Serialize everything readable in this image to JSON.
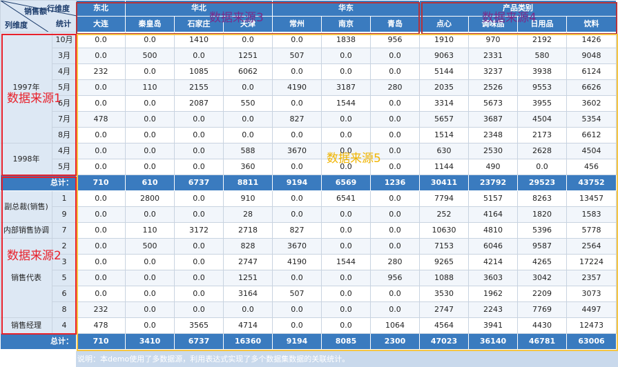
{
  "corner": {
    "row_dim": "行维度",
    "sales": "销售额",
    "stats": "统计",
    "col_dim": "列维度"
  },
  "header": {
    "groups": [
      "东北",
      "华北",
      "华东",
      "产品类别"
    ],
    "columns": [
      "大连",
      "秦皇岛",
      "石家庄",
      "天津",
      "常州",
      "南京",
      "青岛",
      "点心",
      "调味品",
      "日用品",
      "饮料"
    ]
  },
  "section1": {
    "year_groups": [
      "1997年",
      "1998年"
    ],
    "months": [
      "10月",
      "3月",
      "4月",
      "5月",
      "6月",
      "7月",
      "8月",
      "4月",
      "5月"
    ],
    "rows": [
      [
        "0.0",
        "0.0",
        "1410",
        "0.0",
        "0.0",
        "1838",
        "956",
        "1910",
        "970",
        "2192",
        "1426"
      ],
      [
        "0.0",
        "500",
        "0.0",
        "1251",
        "507",
        "0.0",
        "0.0",
        "9063",
        "2331",
        "580",
        "9048"
      ],
      [
        "232",
        "0.0",
        "1085",
        "6062",
        "0.0",
        "0.0",
        "0.0",
        "5144",
        "3237",
        "3938",
        "6124"
      ],
      [
        "0.0",
        "110",
        "2155",
        "0.0",
        "4190",
        "3187",
        "280",
        "2035",
        "2526",
        "9553",
        "6626"
      ],
      [
        "0.0",
        "0.0",
        "2087",
        "550",
        "0.0",
        "1544",
        "0.0",
        "3314",
        "5673",
        "3955",
        "3602"
      ],
      [
        "478",
        "0.0",
        "0.0",
        "0.0",
        "827",
        "0.0",
        "0.0",
        "5657",
        "3687",
        "4504",
        "5354"
      ],
      [
        "0.0",
        "0.0",
        "0.0",
        "0.0",
        "0.0",
        "0.0",
        "0.0",
        "1514",
        "2348",
        "2173",
        "6612"
      ],
      [
        "0.0",
        "0.0",
        "0.0",
        "588",
        "3670",
        "0.0",
        "0.0",
        "630",
        "2530",
        "2628",
        "4504"
      ],
      [
        "0.0",
        "0.0",
        "0.0",
        "360",
        "0.0",
        "0.0",
        "0.0",
        "1144",
        "490",
        "0.0",
        "456"
      ]
    ],
    "total_label": "总计：",
    "totals": [
      "710",
      "610",
      "6737",
      "8811",
      "9194",
      "6569",
      "1236",
      "30411",
      "23792",
      "29523",
      "43752"
    ]
  },
  "section2": {
    "titles": [
      "副总裁(销售)",
      "内部销售协调",
      "销售代表",
      "销售经理"
    ],
    "ids": [
      "1",
      "9",
      "7",
      "2",
      "3",
      "5",
      "6",
      "8",
      "4"
    ],
    "rows": [
      [
        "0.0",
        "2800",
        "0.0",
        "910",
        "0.0",
        "6541",
        "0.0",
        "7794",
        "5157",
        "8263",
        "13457"
      ],
      [
        "0.0",
        "0.0",
        "0.0",
        "28",
        "0.0",
        "0.0",
        "0.0",
        "252",
        "4164",
        "1820",
        "1583"
      ],
      [
        "0.0",
        "110",
        "3172",
        "2718",
        "827",
        "0.0",
        "0.0",
        "10630",
        "4810",
        "5396",
        "5778"
      ],
      [
        "0.0",
        "500",
        "0.0",
        "828",
        "3670",
        "0.0",
        "0.0",
        "7153",
        "6046",
        "9587",
        "2564"
      ],
      [
        "0.0",
        "0.0",
        "0.0",
        "2747",
        "4190",
        "1544",
        "280",
        "9265",
        "4214",
        "4265",
        "17224"
      ],
      [
        "0.0",
        "0.0",
        "0.0",
        "1251",
        "0.0",
        "0.0",
        "956",
        "1088",
        "3603",
        "3042",
        "2357"
      ],
      [
        "0.0",
        "0.0",
        "0.0",
        "3164",
        "507",
        "0.0",
        "0.0",
        "3530",
        "1962",
        "2209",
        "3073"
      ],
      [
        "232",
        "0.0",
        "0.0",
        "0.0",
        "0.0",
        "0.0",
        "0.0",
        "2747",
        "2243",
        "7769",
        "4497"
      ],
      [
        "478",
        "0.0",
        "3565",
        "4714",
        "0.0",
        "0.0",
        "1064",
        "4564",
        "3941",
        "4430",
        "12473"
      ]
    ],
    "total_label": "总计：",
    "totals": [
      "710",
      "3410",
      "6737",
      "16360",
      "9194",
      "8085",
      "2300",
      "47023",
      "36140",
      "46781",
      "63006"
    ]
  },
  "annotations": {
    "source1": "数据来源1",
    "source2": "数据来源2",
    "source3": "数据来源3",
    "source4": "数据来源4",
    "source5": "数据来源5"
  },
  "colors": {
    "header_bg": "#3a7bbf",
    "label_bg": "#dde8f4",
    "source1_2_border": "#e8202a",
    "source3_4_border": "#b5323a",
    "source5_border": "#f5c542"
  },
  "note": "说明：本demo使用了多数据源，利用表达式实现了多个数据集数据的关联统计。"
}
